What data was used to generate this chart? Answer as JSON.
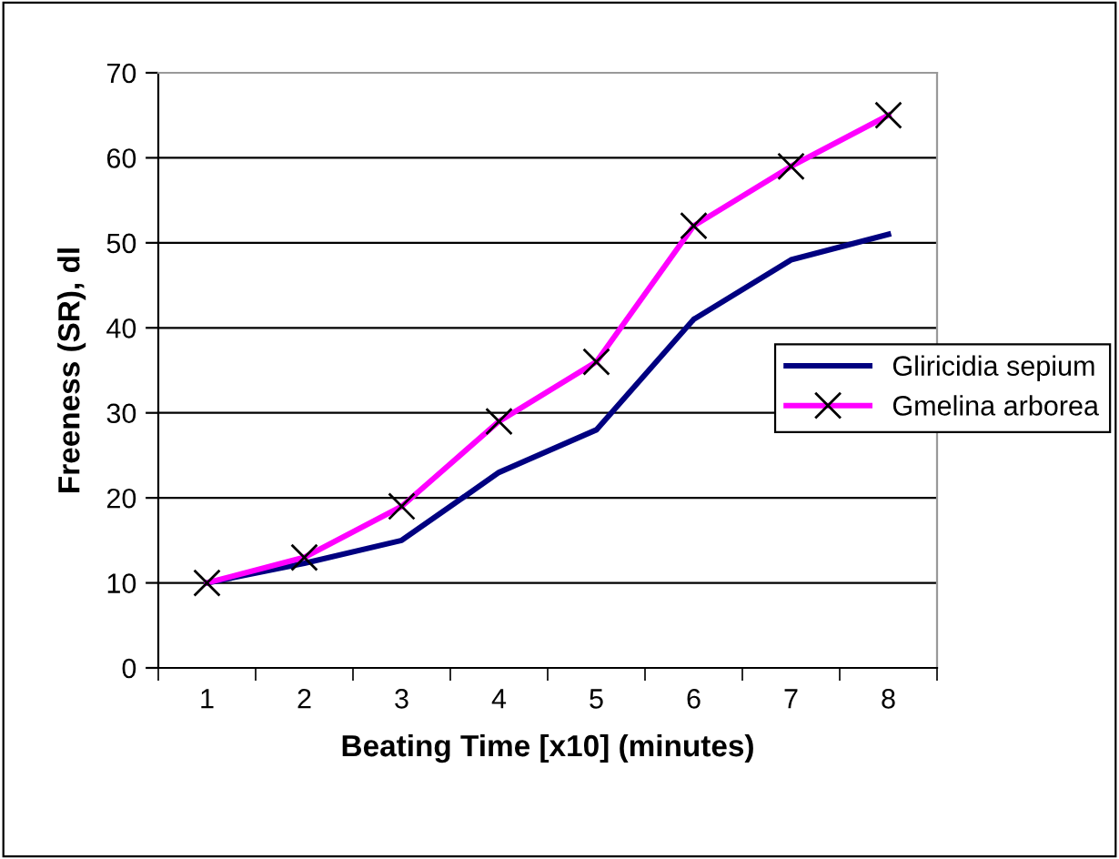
{
  "chart_data": {
    "type": "line",
    "xlabel": "Beating Time [x10] (minutes)",
    "ylabel": "Freeness (SR), dl",
    "categories": [
      "1",
      "2",
      "3",
      "4",
      "5",
      "6",
      "7",
      "8"
    ],
    "series": [
      {
        "name": "Gliricidia sepium",
        "color": "#000080",
        "marker": "none",
        "values": [
          10,
          12.3,
          15,
          23,
          28,
          41,
          48,
          51
        ]
      },
      {
        "name": "Gmelina arborea",
        "color": "#ff00ff",
        "marker": "cross",
        "values": [
          10,
          13,
          19,
          29,
          36,
          52,
          59,
          65
        ]
      }
    ],
    "ylim": [
      0,
      70
    ],
    "yticks": [
      0,
      10,
      20,
      30,
      40,
      50,
      60,
      70
    ],
    "grid": "y",
    "legend": "right"
  }
}
